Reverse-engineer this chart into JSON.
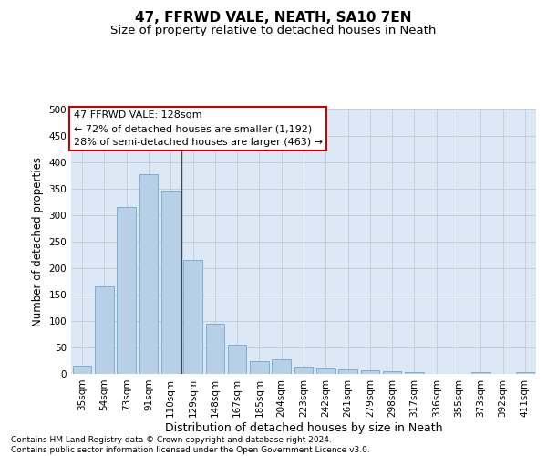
{
  "title": "47, FFRWD VALE, NEATH, SA10 7EN",
  "subtitle": "Size of property relative to detached houses in Neath",
  "xlabel": "Distribution of detached houses by size in Neath",
  "ylabel": "Number of detached properties",
  "categories": [
    "35sqm",
    "54sqm",
    "73sqm",
    "91sqm",
    "110sqm",
    "129sqm",
    "148sqm",
    "167sqm",
    "185sqm",
    "204sqm",
    "223sqm",
    "242sqm",
    "261sqm",
    "279sqm",
    "298sqm",
    "317sqm",
    "336sqm",
    "355sqm",
    "373sqm",
    "392sqm",
    "411sqm"
  ],
  "values": [
    15,
    165,
    315,
    378,
    347,
    215,
    94,
    55,
    25,
    28,
    14,
    11,
    9,
    7,
    5,
    4,
    0,
    0,
    4,
    0,
    4
  ],
  "bar_color": "#b8cfe8",
  "bar_edge_color": "#6fa8d0",
  "highlight_line_color": "#444444",
  "annotation_text": "47 FFRWD VALE: 128sqm\n← 72% of detached houses are smaller (1,192)\n28% of semi-detached houses are larger (463) →",
  "annotation_box_color": "#ffffff",
  "annotation_box_edge_color": "#cc0000",
  "annotation_fontsize": 8.0,
  "title_fontsize": 11,
  "subtitle_fontsize": 9.5,
  "xlabel_fontsize": 9,
  "ylabel_fontsize": 8.5,
  "tick_fontsize": 7.5,
  "footnote": "Contains HM Land Registry data © Crown copyright and database right 2024.\nContains public sector information licensed under the Open Government Licence v3.0.",
  "footnote_fontsize": 6.5,
  "ylim": [
    0,
    500
  ],
  "yticks": [
    0,
    50,
    100,
    150,
    200,
    250,
    300,
    350,
    400,
    450,
    500
  ],
  "background_color": "#ffffff",
  "plot_bg_color": "#dce8f5",
  "grid_color": "#c0cdd8"
}
